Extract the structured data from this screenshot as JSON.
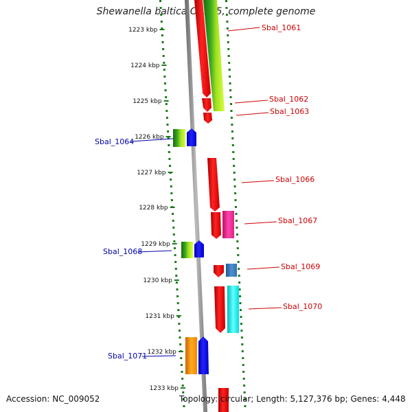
{
  "title": "Shewanella baltica OS155, complete genome",
  "accession_text": "Accession: NC_009052",
  "topology_text": "Topology: circular; Length: 5,127,376 bp; Genes: 4,448",
  "kbp_labels": [
    "1223 kbp",
    "1224 kbp",
    "1225 kbp",
    "1226 kbp",
    "1227 kbp",
    "1228 kbp",
    "1229 kbp",
    "1230 kbp",
    "1231 kbp",
    "1232 kbp",
    "1233 kbp"
  ],
  "gene_labels": [
    {
      "text": "Sbal_1061",
      "color": "#cc0000"
    },
    {
      "text": "Sbal_1062",
      "color": "#cc0000"
    },
    {
      "text": "Sbal_1063",
      "color": "#cc0000"
    },
    {
      "text": "Sbal_1064",
      "color": "#0000aa"
    },
    {
      "text": "Sbal_1066",
      "color": "#cc0000"
    },
    {
      "text": "Sbal_1067",
      "color": "#cc0000"
    },
    {
      "text": "Sbal_1068",
      "color": "#0000aa"
    },
    {
      "text": "Sbal_1069",
      "color": "#cc0000"
    },
    {
      "text": "Sbal_1070",
      "color": "#cc0000"
    },
    {
      "text": "Sbal_1071",
      "color": "#0000aa"
    }
  ],
  "colors": {
    "backbone": "#8a8a8a",
    "red": "#ee0000",
    "blue": "#0000ee",
    "green": "#2a9a1a",
    "lime": "#b8f000",
    "magenta": "#ee2288",
    "steelblue": "#3070b0",
    "cyan": "#00eeee",
    "orange": "#ee8800",
    "dots": "#1a7a1a"
  }
}
